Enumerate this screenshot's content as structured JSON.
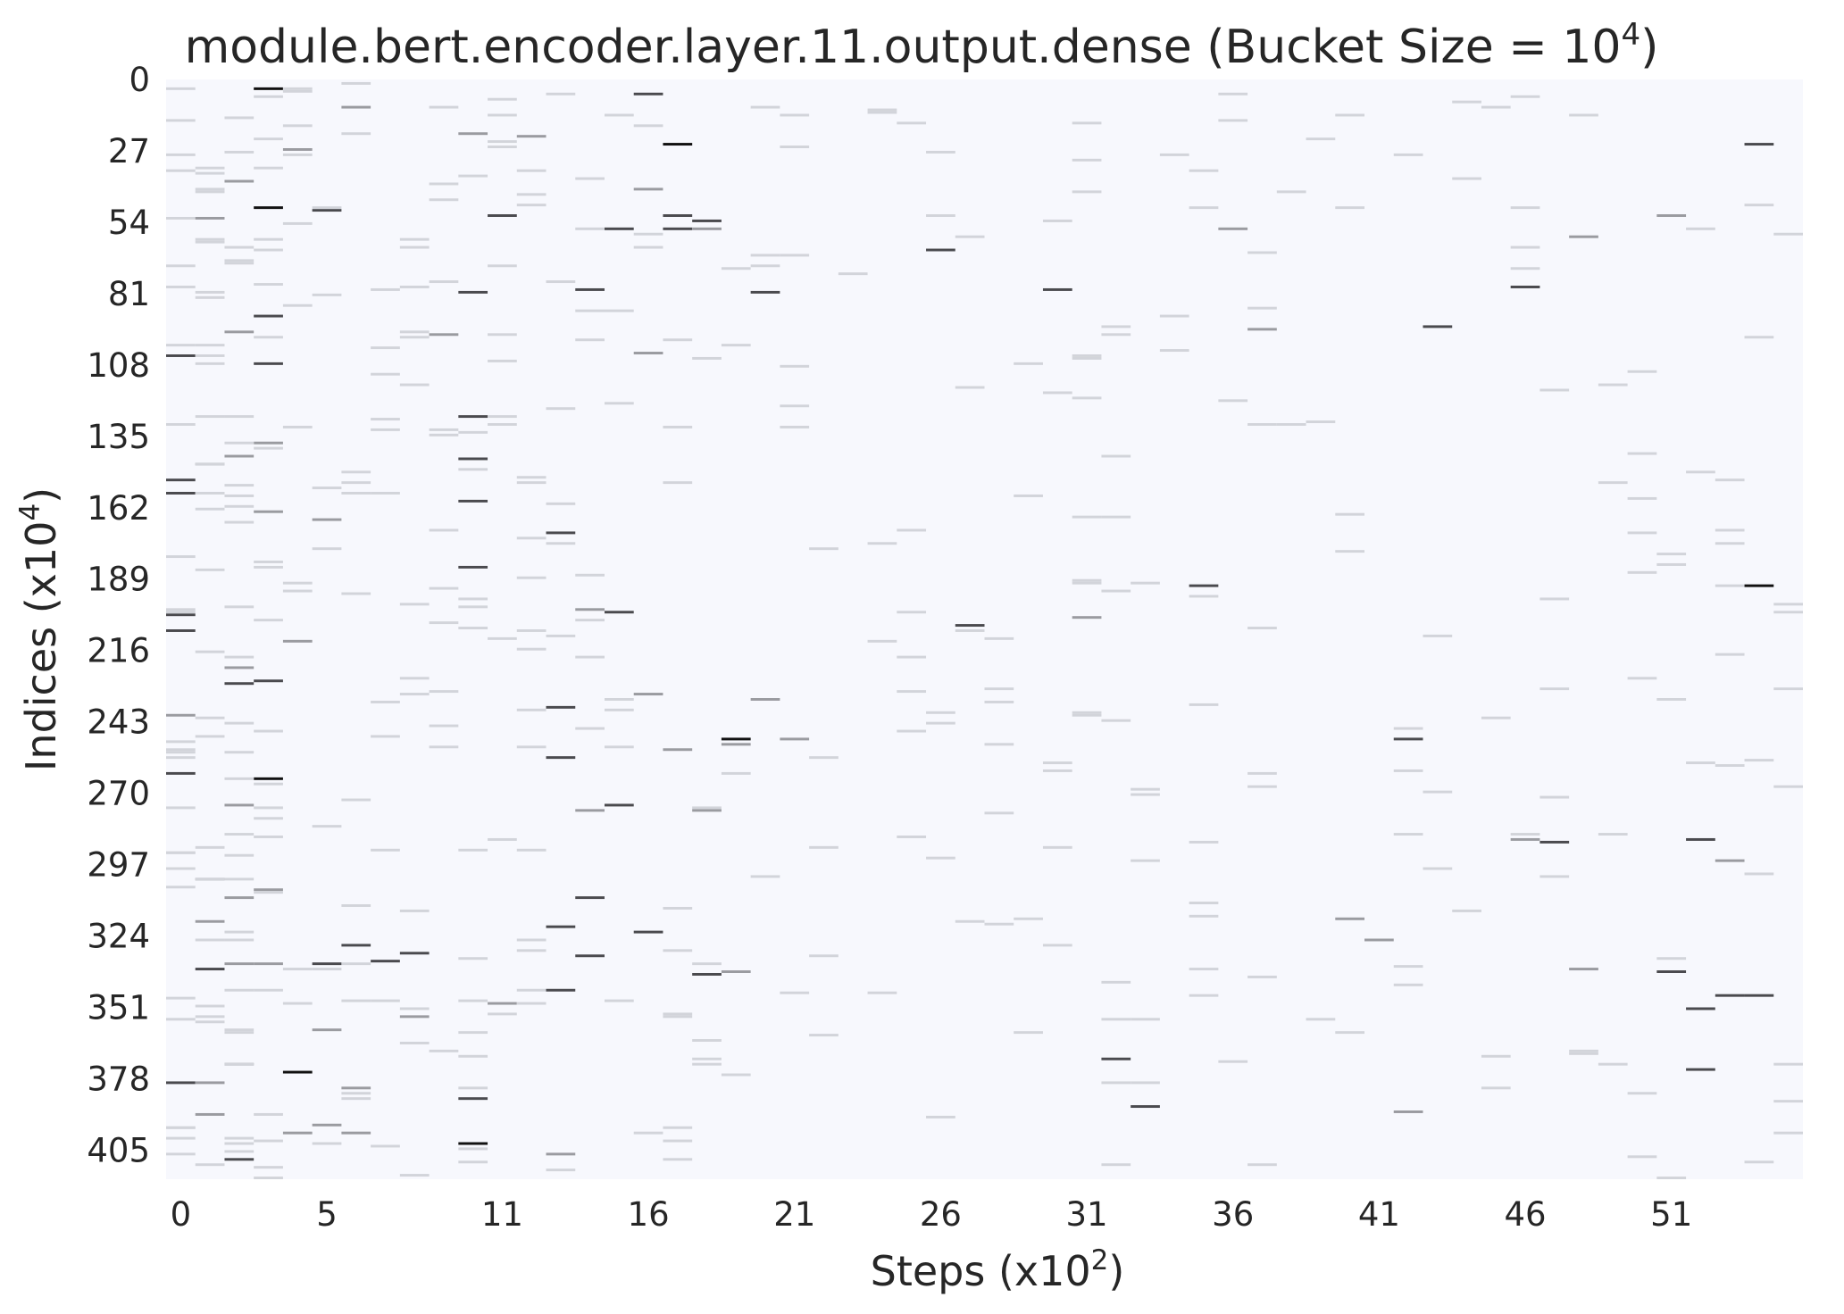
{
  "chart_data": {
    "type": "heatmap",
    "title": {
      "text": "module.bert.encoder.layer.11.output.dense (Bucket Size = 10",
      "sup": "4",
      "close": ")"
    },
    "xlabel": {
      "text": "Steps (x10",
      "sup": "2",
      "close": ")"
    },
    "ylabel": {
      "text": "Indices (x10",
      "sup": "4",
      "close": ")"
    },
    "x_ticks": [
      "0",
      "5",
      "11",
      "16",
      "21",
      "26",
      "31",
      "36",
      "41",
      "46",
      "51"
    ],
    "y_ticks": [
      "0",
      "27",
      "54",
      "81",
      "108",
      "135",
      "162",
      "189",
      "216",
      "243",
      "270",
      "297",
      "324",
      "351",
      "378",
      "405"
    ],
    "x_range": [
      0,
      56
    ],
    "y_range": [
      0,
      416
    ],
    "colorbar": "none",
    "grid": false,
    "colors": {
      "background": "#f7f8fd",
      "low": "#d2d4da",
      "mid": "#9a9ba0",
      "high": "#4a4a4e",
      "max": "#111111"
    },
    "cells": [
      [
        0,
        3,
        0.3
      ],
      [
        0,
        52,
        0.35
      ],
      [
        0,
        70,
        0.4
      ],
      [
        0,
        104,
        0.8
      ],
      [
        0,
        151,
        0.8
      ],
      [
        0,
        156,
        0.9
      ],
      [
        0,
        202,
        0.8
      ],
      [
        0,
        208,
        0.9
      ],
      [
        0,
        240,
        0.5
      ],
      [
        0,
        262,
        0.8
      ],
      [
        0,
        292,
        0.3
      ],
      [
        0,
        355,
        0.4
      ],
      [
        0,
        379,
        0.8
      ],
      [
        0,
        396,
        0.3
      ],
      [
        1,
        33,
        0.3
      ],
      [
        1,
        52,
        0.7
      ],
      [
        1,
        100,
        0.3
      ],
      [
        1,
        145,
        0.7
      ],
      [
        1,
        290,
        0.4
      ],
      [
        1,
        302,
        0.5
      ],
      [
        1,
        318,
        0.5
      ],
      [
        1,
        336,
        0.8
      ],
      [
        1,
        379,
        0.6
      ],
      [
        1,
        391,
        0.5
      ],
      [
        1,
        410,
        0.4
      ],
      [
        2,
        14,
        0.3
      ],
      [
        2,
        38,
        0.5
      ],
      [
        2,
        95,
        0.5
      ],
      [
        2,
        142,
        0.7
      ],
      [
        2,
        222,
        0.5
      ],
      [
        2,
        228,
        0.8
      ],
      [
        2,
        254,
        0.4
      ],
      [
        2,
        274,
        0.7
      ],
      [
        2,
        309,
        0.5
      ],
      [
        2,
        334,
        0.7
      ],
      [
        2,
        372,
        0.7
      ],
      [
        2,
        408,
        0.8
      ],
      [
        3,
        3,
        0.95
      ],
      [
        3,
        22,
        0.3
      ],
      [
        3,
        48,
        0.95
      ],
      [
        3,
        89,
        0.8
      ],
      [
        3,
        107,
        0.8
      ],
      [
        3,
        137,
        0.6
      ],
      [
        3,
        163,
        0.5
      ],
      [
        3,
        227,
        0.8
      ],
      [
        3,
        264,
        0.95
      ],
      [
        3,
        306,
        0.7
      ],
      [
        3,
        334,
        0.5
      ],
      [
        4,
        26,
        0.6
      ],
      [
        4,
        54,
        0.3
      ],
      [
        4,
        212,
        0.5
      ],
      [
        4,
        375,
        0.95
      ],
      [
        4,
        398,
        0.5
      ],
      [
        5,
        49,
        0.8
      ],
      [
        5,
        166,
        0.5
      ],
      [
        5,
        334,
        0.85
      ],
      [
        5,
        359,
        0.7
      ],
      [
        5,
        395,
        0.5
      ],
      [
        6,
        10,
        0.6
      ],
      [
        6,
        194,
        0.3
      ],
      [
        6,
        327,
        0.8
      ],
      [
        6,
        381,
        0.6
      ],
      [
        6,
        398,
        0.7
      ],
      [
        7,
        333,
        0.8
      ],
      [
        8,
        330,
        0.8
      ],
      [
        8,
        354,
        0.5
      ],
      [
        9,
        96,
        0.7
      ],
      [
        9,
        170,
        0.3
      ],
      [
        9,
        252,
        0.4
      ],
      [
        10,
        20,
        0.7
      ],
      [
        10,
        80,
        0.8
      ],
      [
        10,
        127,
        0.8
      ],
      [
        10,
        143,
        0.8
      ],
      [
        10,
        159,
        0.9
      ],
      [
        10,
        184,
        0.8
      ],
      [
        10,
        385,
        0.9
      ],
      [
        10,
        402,
        0.95
      ],
      [
        11,
        7,
        0.4
      ],
      [
        11,
        51,
        0.8
      ],
      [
        11,
        130,
        0.4
      ],
      [
        11,
        287,
        0.4
      ],
      [
        11,
        349,
        0.5
      ],
      [
        12,
        21,
        0.7
      ],
      [
        12,
        150,
        0.3
      ],
      [
        12,
        238,
        0.4
      ],
      [
        13,
        171,
        0.8
      ],
      [
        13,
        237,
        0.8
      ],
      [
        13,
        256,
        0.8
      ],
      [
        13,
        320,
        0.8
      ],
      [
        13,
        344,
        0.9
      ],
      [
        13,
        406,
        0.7
      ],
      [
        14,
        79,
        0.8
      ],
      [
        14,
        200,
        0.7
      ],
      [
        14,
        218,
        0.4
      ],
      [
        14,
        276,
        0.6
      ],
      [
        14,
        309,
        0.8
      ],
      [
        14,
        331,
        0.8
      ],
      [
        15,
        56,
        0.8
      ],
      [
        15,
        201,
        0.8
      ],
      [
        15,
        234,
        0.4
      ],
      [
        15,
        274,
        0.8
      ],
      [
        16,
        5,
        0.85
      ],
      [
        16,
        41,
        0.7
      ],
      [
        16,
        103,
        0.7
      ],
      [
        16,
        232,
        0.7
      ],
      [
        16,
        322,
        0.8
      ],
      [
        17,
        24,
        0.95
      ],
      [
        17,
        51,
        0.8
      ],
      [
        17,
        56,
        0.8
      ],
      [
        17,
        253,
        0.5
      ],
      [
        18,
        53,
        0.9
      ],
      [
        18,
        56,
        0.7
      ],
      [
        18,
        276,
        0.5
      ],
      [
        18,
        338,
        0.9
      ],
      [
        19,
        249,
        0.95
      ],
      [
        19,
        251,
        0.6
      ],
      [
        19,
        337,
        0.7
      ],
      [
        20,
        80,
        0.8
      ],
      [
        20,
        234,
        0.7
      ],
      [
        21,
        249,
        0.5
      ],
      [
        26,
        64,
        0.8
      ],
      [
        27,
        206,
        0.8
      ],
      [
        30,
        79,
        0.8
      ],
      [
        31,
        203,
        0.6
      ],
      [
        32,
        370,
        0.9
      ],
      [
        33,
        388,
        0.8
      ],
      [
        35,
        191,
        0.8
      ],
      [
        36,
        56,
        0.7
      ],
      [
        37,
        94,
        0.5
      ],
      [
        40,
        317,
        0.5
      ],
      [
        41,
        325,
        0.7
      ],
      [
        42,
        249,
        0.8
      ],
      [
        42,
        390,
        0.7
      ],
      [
        43,
        93,
        0.8
      ],
      [
        46,
        78,
        0.8
      ],
      [
        46,
        287,
        0.7
      ],
      [
        47,
        288,
        0.8
      ],
      [
        48,
        59,
        0.7
      ],
      [
        48,
        336,
        0.7
      ],
      [
        51,
        51,
        0.7
      ],
      [
        51,
        337,
        0.85
      ],
      [
        52,
        287,
        0.8
      ],
      [
        52,
        351,
        0.8
      ],
      [
        52,
        374,
        0.8
      ],
      [
        53,
        295,
        0.7
      ],
      [
        53,
        346,
        0.85
      ],
      [
        54,
        191,
        0.95
      ],
      [
        54,
        346,
        0.8
      ],
      [
        54,
        24,
        0.9
      ]
    ]
  }
}
